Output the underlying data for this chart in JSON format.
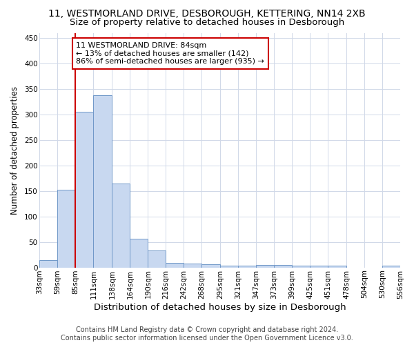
{
  "title1": "11, WESTMORLAND DRIVE, DESBOROUGH, KETTERING, NN14 2XB",
  "title2": "Size of property relative to detached houses in Desborough",
  "xlabel": "Distribution of detached houses by size in Desborough",
  "ylabel": "Number of detached properties",
  "footnote": "Contains HM Land Registry data © Crown copyright and database right 2024.\nContains public sector information licensed under the Open Government Licence v3.0.",
  "bar_color": "#c8d8f0",
  "bar_edge_color": "#7098c8",
  "annotation_box_color": "#cc0000",
  "vline_color": "#cc0000",
  "annotation_text": "11 WESTMORLAND DRIVE: 84sqm\n← 13% of detached houses are smaller (142)\n86% of semi-detached houses are larger (935) →",
  "vline_x": 85,
  "bin_edges": [
    33,
    59,
    85,
    111,
    138,
    164,
    190,
    216,
    242,
    268,
    295,
    321,
    347,
    373,
    399,
    425,
    451,
    478,
    504,
    530,
    556
  ],
  "bin_labels": [
    "33sqm",
    "59sqm",
    "85sqm",
    "111sqm",
    "138sqm",
    "164sqm",
    "190sqm",
    "216sqm",
    "242sqm",
    "268sqm",
    "295sqm",
    "321sqm",
    "347sqm",
    "373sqm",
    "399sqm",
    "425sqm",
    "451sqm",
    "478sqm",
    "504sqm",
    "530sqm",
    "556sqm"
  ],
  "bar_heights": [
    15,
    153,
    305,
    338,
    165,
    57,
    33,
    9,
    7,
    6,
    3,
    3,
    5,
    5,
    3,
    3,
    3,
    0,
    0,
    4
  ],
  "ylim": [
    0,
    460
  ],
  "background_color": "#ffffff",
  "grid_color": "#d0d8e8",
  "title1_fontsize": 10,
  "title2_fontsize": 9.5,
  "annotation_fontsize": 8,
  "xlabel_fontsize": 9.5,
  "ylabel_fontsize": 8.5,
  "footnote_fontsize": 7,
  "tick_fontsize": 7.5
}
